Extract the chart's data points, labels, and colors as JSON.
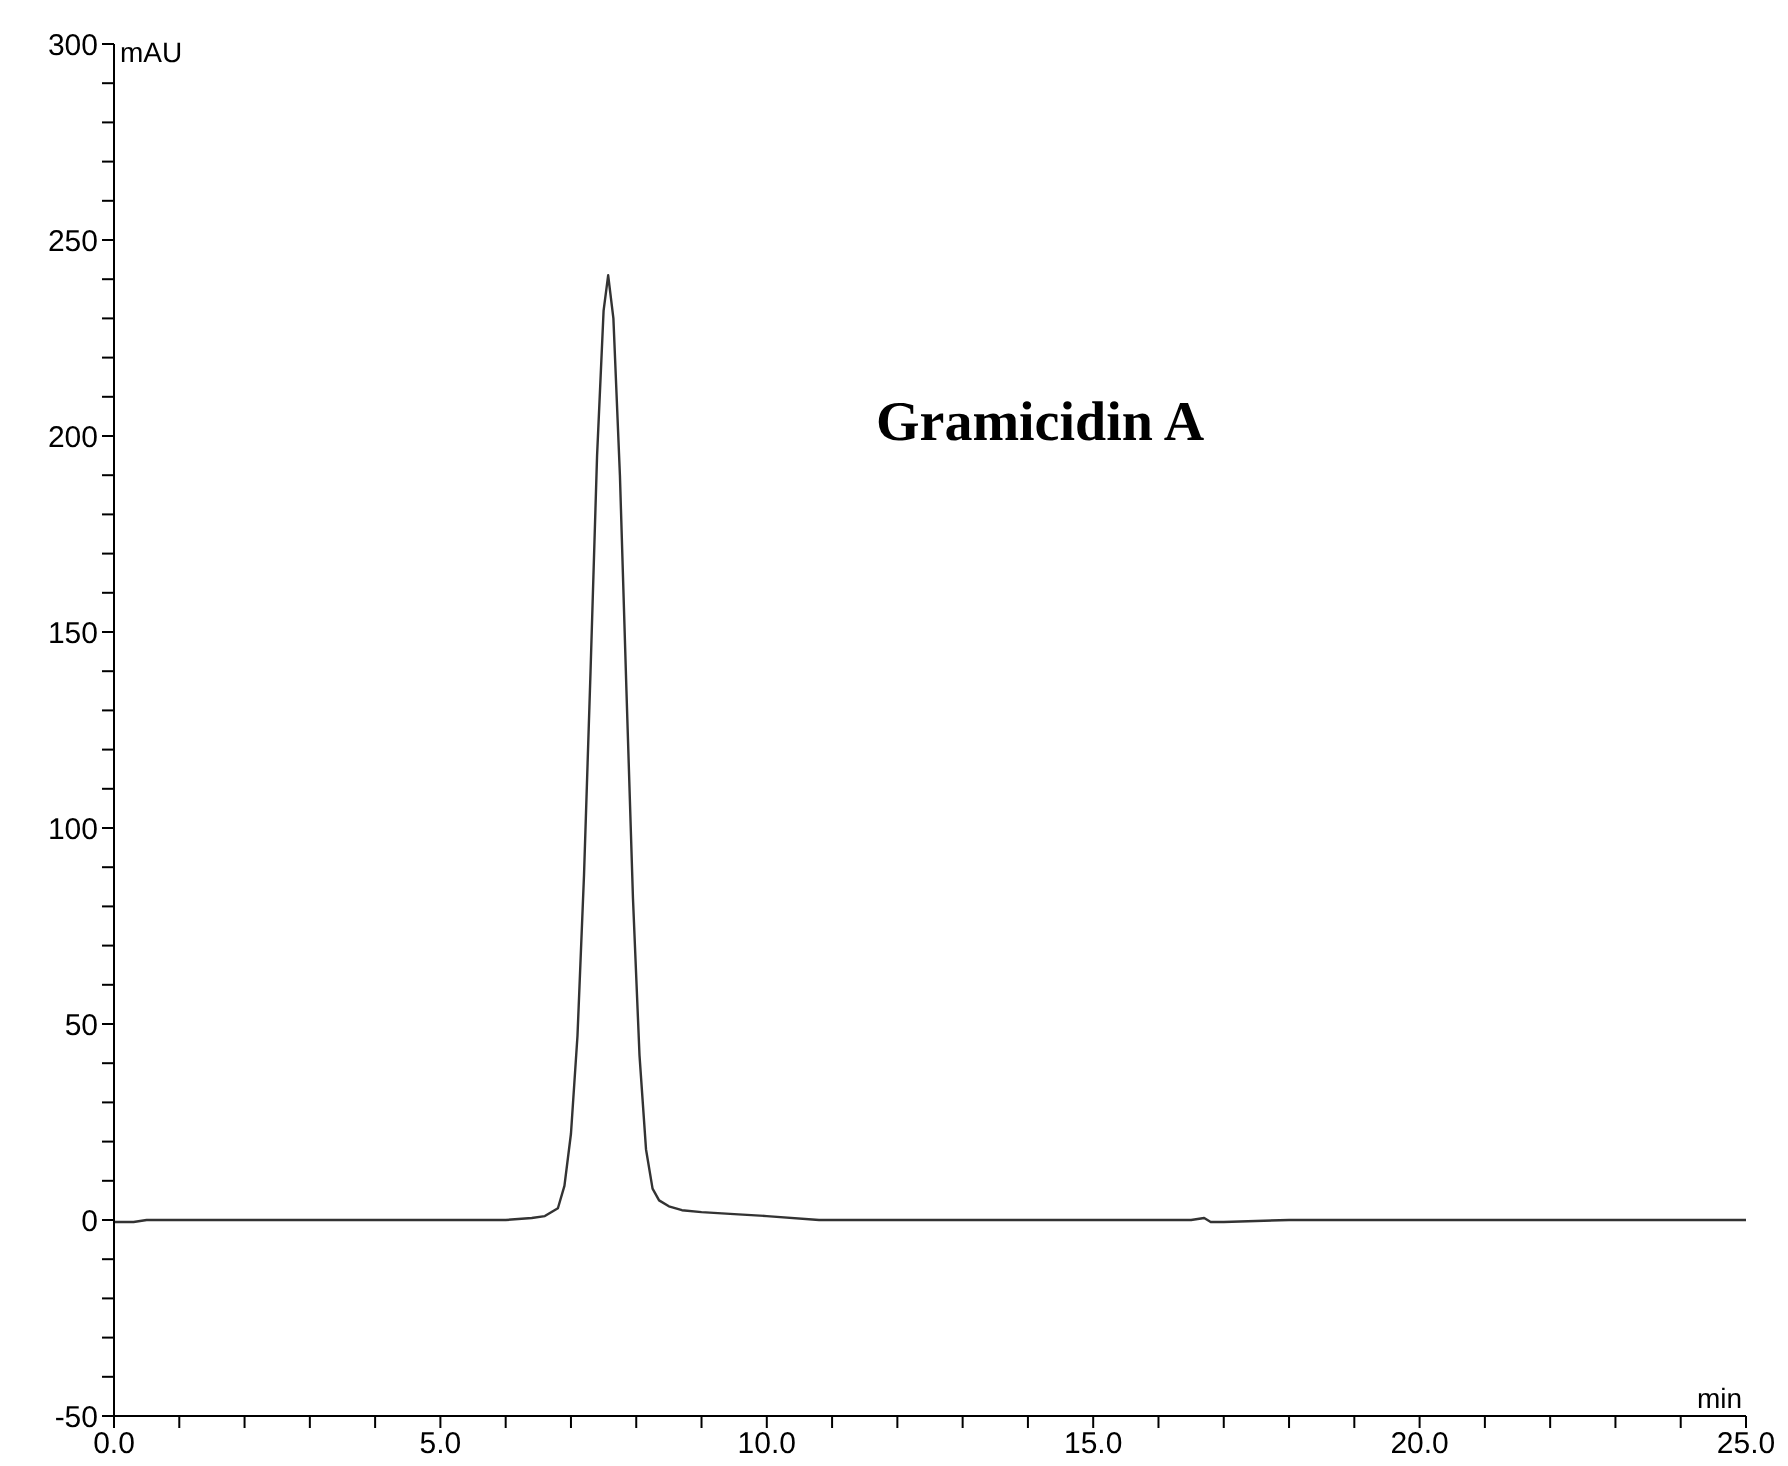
{
  "chart_data": {
    "type": "line",
    "xlabel": "min",
    "ylabel": "mAU",
    "annotations": [
      "Gramicidin A"
    ],
    "x": [
      0,
      0.3,
      0.5,
      3,
      6,
      6.4,
      6.6,
      6.8,
      6.9,
      7,
      7.1,
      7.2,
      7.3,
      7.4,
      7.5,
      7.57,
      7.65,
      7.75,
      7.85,
      7.95,
      8.05,
      8.15,
      8.25,
      8.35,
      8.5,
      8.7,
      9,
      9.5,
      10,
      10.8,
      16.5,
      16.7,
      16.8,
      17,
      18,
      25
    ],
    "series": [
      {
        "color": "#333333",
        "values": [
          -0.5,
          -0.5,
          0,
          0,
          0,
          0.5,
          1,
          3,
          8.7,
          22,
          47,
          88,
          140,
          195,
          232,
          241,
          230,
          190,
          135,
          82,
          42,
          18,
          8,
          5,
          3.5,
          2.5,
          2,
          1.5,
          1,
          0,
          0,
          0.5,
          -0.5,
          -0.5,
          0,
          0
        ]
      }
    ],
    "xlim": [
      0,
      25
    ],
    "ylim": [
      -50,
      300
    ],
    "xticks": [
      {
        "value": 0,
        "label": "0.0"
      },
      {
        "value": 1,
        "label": null
      },
      {
        "value": 2,
        "label": null
      },
      {
        "value": 3,
        "label": null
      },
      {
        "value": 4,
        "label": null
      },
      {
        "value": 5,
        "label": "5.0"
      },
      {
        "value": 6,
        "label": null
      },
      {
        "value": 7,
        "label": null
      },
      {
        "value": 8,
        "label": null
      },
      {
        "value": 9,
        "label": null
      },
      {
        "value": 10,
        "label": "10.0"
      },
      {
        "value": 11,
        "label": null
      },
      {
        "value": 12,
        "label": null
      },
      {
        "value": 13,
        "label": null
      },
      {
        "value": 14,
        "label": null
      },
      {
        "value": 15,
        "label": "15.0"
      },
      {
        "value": 16,
        "label": null
      },
      {
        "value": 17,
        "label": null
      },
      {
        "value": 18,
        "label": null
      },
      {
        "value": 19,
        "label": null
      },
      {
        "value": 20,
        "label": "20.0"
      },
      {
        "value": 21,
        "label": null
      },
      {
        "value": 22,
        "label": null
      },
      {
        "value": 23,
        "label": null
      },
      {
        "value": 24,
        "label": null
      },
      {
        "value": 25,
        "label": "25.0"
      }
    ],
    "yticks": [
      -50,
      {
        "value": -40,
        "label": null
      },
      {
        "value": -30,
        "label": null
      },
      {
        "value": -20,
        "label": null
      },
      {
        "value": -10,
        "label": null
      },
      0,
      {
        "value": 10,
        "label": null
      },
      {
        "value": 20,
        "label": null
      },
      {
        "value": 30,
        "label": null
      },
      {
        "value": 40,
        "label": null
      },
      50,
      {
        "value": 60,
        "label": null
      },
      {
        "value": 70,
        "label": null
      },
      {
        "value": 80,
        "label": null
      },
      {
        "value": 90,
        "label": null
      },
      100,
      {
        "value": 110,
        "label": null
      },
      {
        "value": 120,
        "label": null
      },
      {
        "value": 130,
        "label": null
      },
      {
        "value": 140,
        "label": null
      },
      150,
      {
        "value": 160,
        "label": null
      },
      {
        "value": 170,
        "label": null
      },
      {
        "value": 180,
        "label": null
      },
      {
        "value": 190,
        "label": null
      },
      200,
      {
        "value": 210,
        "label": null
      },
      {
        "value": 220,
        "label": null
      },
      {
        "value": 230,
        "label": null
      },
      {
        "value": 240,
        "label": null
      },
      250,
      {
        "value": 260,
        "label": null
      },
      {
        "value": 270,
        "label": null
      },
      {
        "value": 280,
        "label": null
      },
      {
        "value": 290,
        "label": null
      },
      300
    ],
    "grid": false,
    "legend": false,
    "marker": "none",
    "line_style": "solid"
  }
}
